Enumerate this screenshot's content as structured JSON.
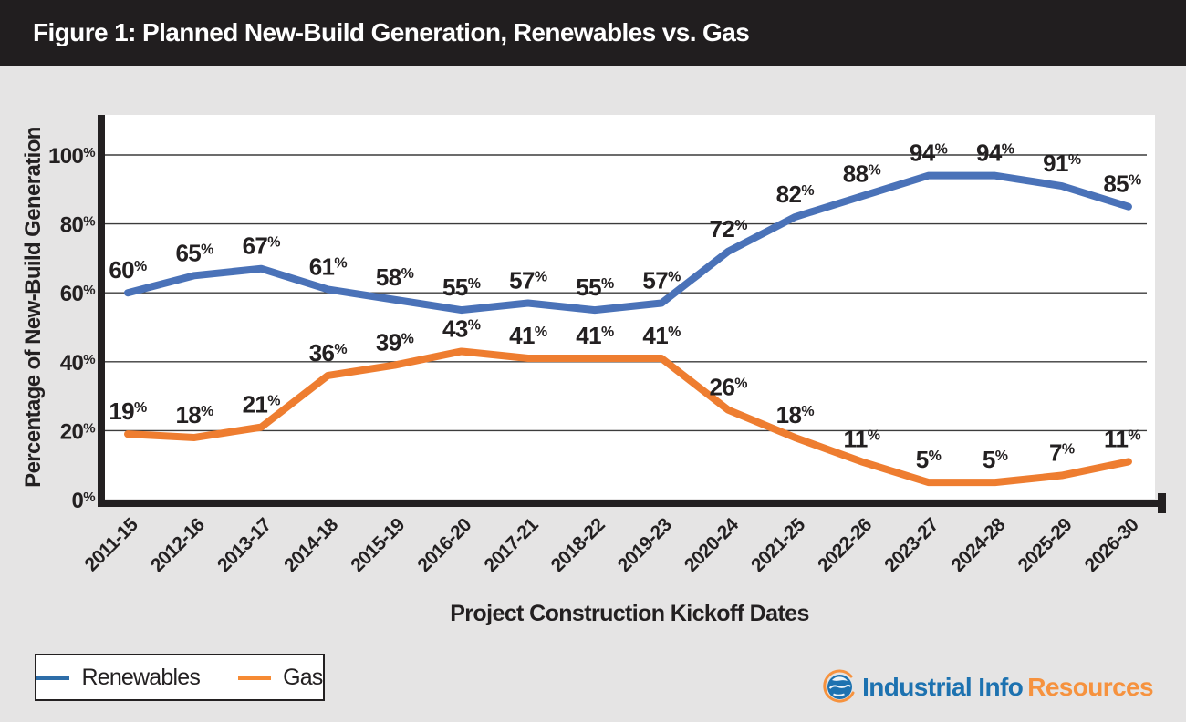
{
  "titlebar": {
    "text": "Figure 1: Planned New-Build Generation, Renewables vs. Gas",
    "bg": "#211e1f",
    "text_color": "#ffffff"
  },
  "page": {
    "background": "#e5e4e4"
  },
  "chart_data": {
    "type": "line",
    "title": "Figure 1: Planned New-Build Generation, Renewables vs. Gas",
    "xlabel": "Project Construction Kickoff Dates",
    "ylabel": "Percentage of  New-Build Generation",
    "categories": [
      "2011-15",
      "2012-16",
      "2013-17",
      "2014-18",
      "2015-19",
      "2016-20",
      "2017-21",
      "2018-22",
      "2019-23",
      "2020-24",
      "2021-25",
      "2022-26",
      "2023-27",
      "2024-28",
      "2025-29",
      "2026-30"
    ],
    "series": [
      {
        "name": "Renewables",
        "color": "#4a72b8",
        "legend_color": "#2d6da8",
        "values": [
          60,
          65,
          67,
          61,
          58,
          55,
          57,
          55,
          57,
          72,
          82,
          88,
          94,
          94,
          91,
          85
        ]
      },
      {
        "name": "Gas",
        "color": "#ee7d30",
        "legend_color": "#f68a33",
        "values": [
          19,
          18,
          21,
          36,
          39,
          43,
          41,
          41,
          41,
          26,
          18,
          11,
          5,
          5,
          7,
          11
        ]
      }
    ],
    "ylim": [
      0,
      100
    ],
    "yticks": [
      0,
      20,
      40,
      60,
      80,
      100
    ],
    "ytick_suffix": "%",
    "data_label_suffix": "%",
    "grid": "horizontal",
    "gridline_color": "#3c3c3c",
    "axis_color": "#232021",
    "legend_position": "bottom-left"
  },
  "logo": {
    "icon": "globe-icon",
    "brand_primary": "Industrial Info",
    "brand_secondary": "Resources",
    "primary_color": "#1d72b0",
    "secondary_color": "#f6923e"
  }
}
